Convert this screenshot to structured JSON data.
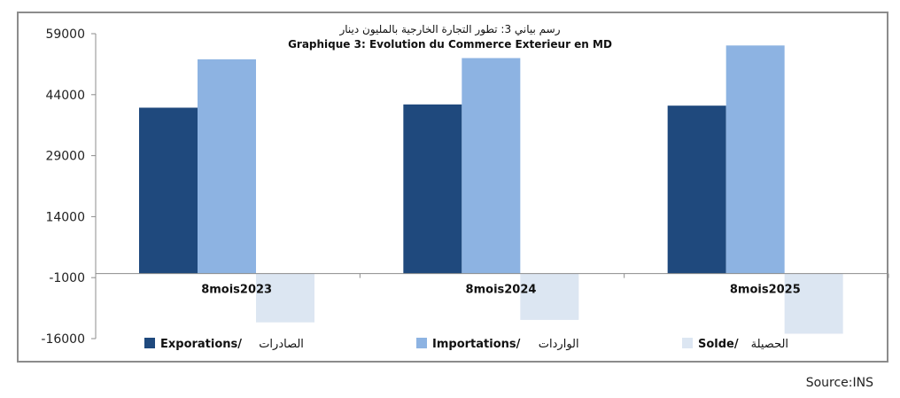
{
  "chart_data": {
    "type": "bar",
    "title": "رسم بياني 3: تطور التجارة الخارجية بالمليون دينار",
    "subtitle": "Graphique 3: Evolution du Commerce Exterieur en MD",
    "categories": [
      "8mois2023",
      "8mois2024",
      "8mois2025"
    ],
    "series": [
      {
        "name": "Exporations/ الصادرات",
        "name_fr": "Exporations/",
        "name_ar": "الصادرات",
        "color": "#1f497d",
        "values": [
          40800,
          41600,
          41300
        ]
      },
      {
        "name": "Importations/ الواردات",
        "name_fr": "Importations/",
        "name_ar": "الواردات",
        "color": "#8db3e2",
        "values": [
          52700,
          53000,
          56100
        ]
      },
      {
        "name": "Solde/ الحصيلة",
        "name_fr": "Solde/",
        "name_ar": "الحصيلة",
        "color": "#dce6f2",
        "values": [
          -12000,
          -11400,
          -14800
        ]
      }
    ],
    "yticks": [
      "59000",
      "44000",
      "29000",
      "14000",
      "-1000",
      "-16000"
    ],
    "ylim": [
      -16000,
      59000
    ],
    "grid": false,
    "legend_position": "bottom"
  },
  "source": "Source:INS"
}
